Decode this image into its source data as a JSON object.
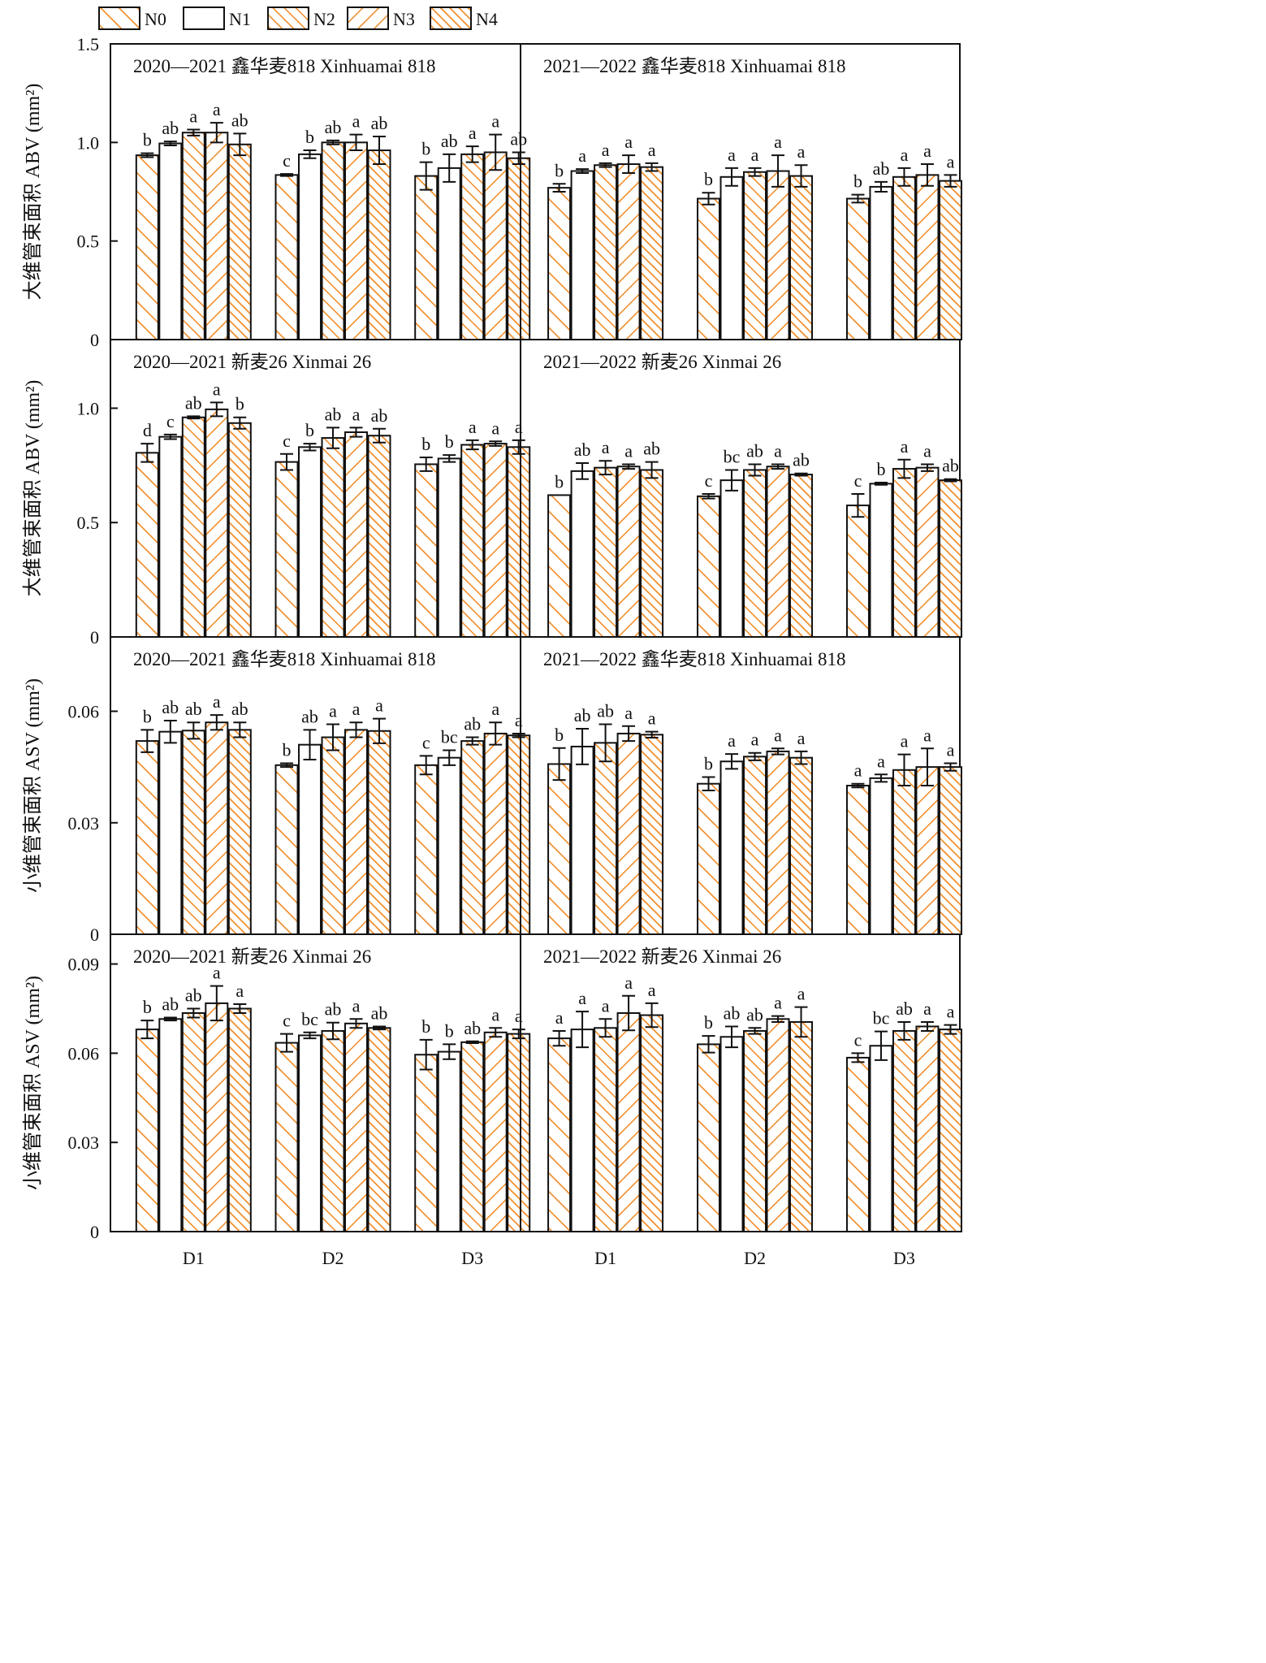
{
  "colors": {
    "orange": "#f08a24",
    "black": "#111111"
  },
  "legend": {
    "items": [
      {
        "label": "N0",
        "pattern": "hatch-fwd"
      },
      {
        "label": "N1",
        "pattern": "blank"
      },
      {
        "label": "N2",
        "pattern": "hatch-fwd-dense"
      },
      {
        "label": "N3",
        "pattern": "hatch-back"
      },
      {
        "label": "N4",
        "pattern": "hatch-cross-fwd"
      }
    ]
  },
  "chart_data": [
    {
      "type": "bar",
      "row": 0,
      "col": 0,
      "title": "2020—2021 鑫华麦818 Xinhuamai 818",
      "ylabel": "大维管束面积 ABV (mm²)",
      "ylim": [
        0,
        1.5
      ],
      "yticks": [
        "0",
        "0.5",
        "1.0",
        "1.5"
      ],
      "categories": [
        "D1",
        "D2",
        "D3"
      ],
      "series": [
        {
          "name": "N0",
          "values": [
            0.935,
            0.835,
            0.83
          ],
          "errors": [
            0.01,
            0.005,
            0.07
          ],
          "letters": [
            "b",
            "c",
            "b"
          ]
        },
        {
          "name": "N1",
          "values": [
            0.995,
            0.94,
            0.87
          ],
          "errors": [
            0.01,
            0.02,
            0.07
          ],
          "letters": [
            "ab",
            "b",
            "ab"
          ]
        },
        {
          "name": "N2",
          "values": [
            1.05,
            1.0,
            0.94
          ],
          "errors": [
            0.015,
            0.01,
            0.04
          ],
          "letters": [
            "a",
            "ab",
            "a"
          ]
        },
        {
          "name": "N3",
          "values": [
            1.05,
            1.0,
            0.95
          ],
          "errors": [
            0.05,
            0.04,
            0.09
          ],
          "letters": [
            "a",
            "a",
            "a"
          ]
        },
        {
          "name": "N4",
          "values": [
            0.99,
            0.96,
            0.92
          ],
          "errors": [
            0.055,
            0.07,
            0.03
          ],
          "letters": [
            "ab",
            "ab",
            "ab"
          ]
        }
      ]
    },
    {
      "type": "bar",
      "row": 0,
      "col": 1,
      "title": "2021—2022 鑫华麦818 Xinhuamai 818",
      "ylim": [
        0,
        1.5
      ],
      "categories": [
        "D1",
        "D2",
        "D3"
      ],
      "series": [
        {
          "name": "N0",
          "values": [
            0.77,
            0.715,
            0.715
          ],
          "errors": [
            0.02,
            0.03,
            0.02
          ],
          "letters": [
            "b",
            "b",
            "b"
          ]
        },
        {
          "name": "N1",
          "values": [
            0.855,
            0.825,
            0.775
          ],
          "errors": [
            0.01,
            0.045,
            0.025
          ],
          "letters": [
            "a",
            "a",
            "ab"
          ]
        },
        {
          "name": "N2",
          "values": [
            0.885,
            0.85,
            0.825
          ],
          "errors": [
            0.01,
            0.02,
            0.045
          ],
          "letters": [
            "a",
            "a",
            "a"
          ]
        },
        {
          "name": "N3",
          "values": [
            0.89,
            0.855,
            0.835
          ],
          "errors": [
            0.045,
            0.08,
            0.055
          ],
          "letters": [
            "a",
            "a",
            "a"
          ]
        },
        {
          "name": "N4",
          "values": [
            0.875,
            0.83,
            0.805
          ],
          "errors": [
            0.02,
            0.055,
            0.03
          ],
          "letters": [
            "a",
            "a",
            "a"
          ]
        }
      ]
    },
    {
      "type": "bar",
      "row": 1,
      "col": 0,
      "title": "2020—2021 新麦26 Xinmai 26",
      "ylabel": "大维管束面积 ABV (mm²)",
      "ylim": [
        0,
        1.3
      ],
      "yticks": [
        "0",
        "0.5",
        "1.0"
      ],
      "categories": [
        "D1",
        "D2",
        "D3"
      ],
      "series": [
        {
          "name": "N0",
          "values": [
            0.805,
            0.765,
            0.755
          ],
          "errors": [
            0.04,
            0.035,
            0.03
          ],
          "letters": [
            "d",
            "c",
            "b"
          ]
        },
        {
          "name": "N1",
          "values": [
            0.875,
            0.83,
            0.78
          ],
          "errors": [
            0.01,
            0.015,
            0.015
          ],
          "letters": [
            "c",
            "b",
            "b"
          ]
        },
        {
          "name": "N2",
          "values": [
            0.96,
            0.87,
            0.84
          ],
          "errors": [
            0.005,
            0.045,
            0.02
          ],
          "letters": [
            "ab",
            "ab",
            "a"
          ]
        },
        {
          "name": "N3",
          "values": [
            0.995,
            0.895,
            0.845
          ],
          "errors": [
            0.03,
            0.02,
            0.01
          ],
          "letters": [
            "a",
            "a",
            "a"
          ]
        },
        {
          "name": "N4",
          "values": [
            0.935,
            0.88,
            0.83
          ],
          "errors": [
            0.025,
            0.03,
            0.03
          ],
          "letters": [
            "b",
            "ab",
            "a"
          ]
        }
      ]
    },
    {
      "type": "bar",
      "row": 1,
      "col": 1,
      "title": "2021—2022 新麦26 Xinmai 26",
      "ylim": [
        0,
        1.3
      ],
      "categories": [
        "D1",
        "D2",
        "D3"
      ],
      "series": [
        {
          "name": "N0",
          "values": [
            0.62,
            0.615,
            0.575
          ],
          "errors": [
            0.0,
            0.01,
            0.05
          ],
          "letters": [
            "b",
            "c",
            "c"
          ]
        },
        {
          "name": "N1",
          "values": [
            0.725,
            0.685,
            0.67
          ],
          "errors": [
            0.035,
            0.045,
            0.005
          ],
          "letters": [
            "ab",
            "bc",
            "b"
          ]
        },
        {
          "name": "N2",
          "values": [
            0.74,
            0.73,
            0.735
          ],
          "errors": [
            0.03,
            0.025,
            0.04
          ],
          "letters": [
            "a",
            "ab",
            "a"
          ]
        },
        {
          "name": "N3",
          "values": [
            0.745,
            0.745,
            0.74
          ],
          "errors": [
            0.01,
            0.01,
            0.015
          ],
          "letters": [
            "a",
            "a",
            "a"
          ]
        },
        {
          "name": "N4",
          "values": [
            0.73,
            0.71,
            0.685
          ],
          "errors": [
            0.035,
            0.005,
            0.005
          ],
          "letters": [
            "ab",
            "ab",
            "ab"
          ]
        }
      ]
    },
    {
      "type": "bar",
      "row": 2,
      "col": 0,
      "title": "2020—2021 鑫华麦818 Xinhuamai 818",
      "ylabel": "小维管束面积 ASV (mm²)",
      "ylim": [
        0,
        0.08
      ],
      "yticks": [
        "0",
        "0.03",
        "0.06"
      ],
      "categories": [
        "D1",
        "D2",
        "D3"
      ],
      "series": [
        {
          "name": "N0",
          "values": [
            0.052,
            0.0455,
            0.0455
          ],
          "errors": [
            0.003,
            0.0005,
            0.0025
          ],
          "letters": [
            "b",
            "b",
            "c"
          ]
        },
        {
          "name": "N1",
          "values": [
            0.0545,
            0.051,
            0.0475
          ],
          "errors": [
            0.003,
            0.004,
            0.002
          ],
          "letters": [
            "ab",
            "ab",
            "bc"
          ]
        },
        {
          "name": "N2",
          "values": [
            0.0548,
            0.053,
            0.052
          ],
          "errors": [
            0.0022,
            0.0035,
            0.001
          ],
          "letters": [
            "ab",
            "a",
            "ab"
          ]
        },
        {
          "name": "N3",
          "values": [
            0.057,
            0.055,
            0.054
          ],
          "errors": [
            0.002,
            0.002,
            0.003
          ],
          "letters": [
            "a",
            "a",
            "a"
          ]
        },
        {
          "name": "N4",
          "values": [
            0.055,
            0.0547,
            0.0535
          ],
          "errors": [
            0.002,
            0.0033,
            0.0005
          ],
          "letters": [
            "ab",
            "a",
            "a"
          ]
        }
      ]
    },
    {
      "type": "bar",
      "row": 2,
      "col": 1,
      "title": "2021—2022 鑫华麦818 Xinhuamai 818",
      "ylim": [
        0,
        0.08
      ],
      "categories": [
        "D1",
        "D2",
        "D3"
      ],
      "series": [
        {
          "name": "N0",
          "values": [
            0.0458,
            0.0405,
            0.04
          ],
          "errors": [
            0.0043,
            0.0018,
            0.0005
          ],
          "letters": [
            "b",
            "b",
            "a"
          ]
        },
        {
          "name": "N1",
          "values": [
            0.0505,
            0.0465,
            0.042
          ],
          "errors": [
            0.0048,
            0.002,
            0.001
          ],
          "letters": [
            "ab",
            "a",
            "a"
          ]
        },
        {
          "name": "N2",
          "values": [
            0.0515,
            0.0478,
            0.0442
          ],
          "errors": [
            0.005,
            0.001,
            0.0042
          ],
          "letters": [
            "ab",
            "a",
            "a"
          ]
        },
        {
          "name": "N3",
          "values": [
            0.054,
            0.0492,
            0.045
          ],
          "errors": [
            0.002,
            0.0008,
            0.005
          ],
          "letters": [
            "a",
            "a",
            "a"
          ]
        },
        {
          "name": "N4",
          "values": [
            0.0537,
            0.0475,
            0.045
          ],
          "errors": [
            0.0008,
            0.0017,
            0.001
          ],
          "letters": [
            "a",
            "a",
            "a"
          ]
        }
      ]
    },
    {
      "type": "bar",
      "row": 3,
      "col": 0,
      "title": "2020—2021 新麦26 Xinmai 26",
      "ylabel": "小维管束面积 ASV (mm²)",
      "ylim": [
        0,
        0.1
      ],
      "yticks": [
        "0",
        "0.03",
        "0.06",
        "0.09"
      ],
      "categories": [
        "D1",
        "D2",
        "D3"
      ],
      "series": [
        {
          "name": "N0",
          "values": [
            0.068,
            0.0635,
            0.0595
          ],
          "errors": [
            0.003,
            0.003,
            0.005
          ],
          "letters": [
            "b",
            "c",
            "b"
          ]
        },
        {
          "name": "N1",
          "values": [
            0.0715,
            0.066,
            0.0605
          ],
          "errors": [
            0.0005,
            0.001,
            0.0025
          ],
          "letters": [
            "ab",
            "bc",
            "b"
          ]
        },
        {
          "name": "N2",
          "values": [
            0.0735,
            0.0675,
            0.0637
          ],
          "errors": [
            0.0015,
            0.0028,
            0.0003
          ],
          "letters": [
            "ab",
            "ab",
            "ab"
          ]
        },
        {
          "name": "N3",
          "values": [
            0.0768,
            0.07,
            0.067
          ],
          "errors": [
            0.0058,
            0.0015,
            0.0015
          ],
          "letters": [
            "a",
            "a",
            "a"
          ]
        },
        {
          "name": "N4",
          "values": [
            0.075,
            0.0685,
            0.0665
          ],
          "errors": [
            0.0015,
            0.0005,
            0.0015
          ],
          "letters": [
            "a",
            "ab",
            "a"
          ]
        }
      ]
    },
    {
      "type": "bar",
      "row": 3,
      "col": 1,
      "title": "2021—2022 新麦26 Xinmai 26",
      "ylim": [
        0,
        0.1
      ],
      "categories": [
        "D1",
        "D2",
        "D3"
      ],
      "series": [
        {
          "name": "N0",
          "values": [
            0.065,
            0.063,
            0.0585
          ],
          "errors": [
            0.0025,
            0.0028,
            0.0015
          ],
          "letters": [
            "a",
            "b",
            "c"
          ]
        },
        {
          "name": "N1",
          "values": [
            0.068,
            0.0655,
            0.0625
          ],
          "errors": [
            0.006,
            0.0035,
            0.0048
          ],
          "letters": [
            "a",
            "ab",
            "bc"
          ]
        },
        {
          "name": "N2",
          "values": [
            0.0685,
            0.0675,
            0.0675
          ],
          "errors": [
            0.003,
            0.001,
            0.003
          ],
          "letters": [
            "a",
            "ab",
            "ab"
          ]
        },
        {
          "name": "N3",
          "values": [
            0.0735,
            0.0715,
            0.069
          ],
          "errors": [
            0.0058,
            0.001,
            0.0015
          ],
          "letters": [
            "a",
            "a",
            "a"
          ]
        },
        {
          "name": "N4",
          "values": [
            0.0728,
            0.0705,
            0.068
          ],
          "errors": [
            0.004,
            0.005,
            0.0015
          ],
          "letters": [
            "a",
            "a",
            "a"
          ]
        }
      ]
    }
  ]
}
